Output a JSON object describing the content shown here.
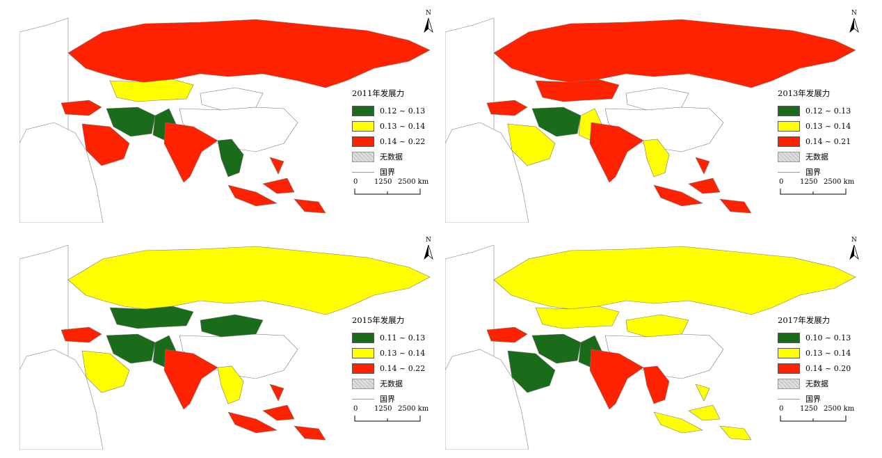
{
  "panels": [
    {
      "title": "2011年发展力",
      "legend": [
        {
          "label": "0.12 ~ 0.13",
          "color": "#1a6b1a"
        },
        {
          "label": "0.13 ~ 0.14",
          "color": "#ffff00"
        },
        {
          "label": "0.14 ~ 0.22",
          "color": "#ff2200"
        }
      ],
      "russia": "high",
      "kazakhstan": "mid",
      "china": "none",
      "mongolia": "none",
      "india": "high",
      "iran": "low",
      "pakistan": "low",
      "saudi": "high",
      "turkey": "high",
      "se_asia": "high",
      "indochina": "low"
    },
    {
      "title": "2013年发展力",
      "legend": [
        {
          "label": "0.12 ~ 0.13",
          "color": "#1a6b1a"
        },
        {
          "label": "0.13 ~ 0.14",
          "color": "#ffff00"
        },
        {
          "label": "0.14 ~ 0.21",
          "color": "#ff2200"
        }
      ],
      "russia": "high",
      "kazakhstan": "high",
      "china": "none",
      "mongolia": "none",
      "india": "high",
      "iran": "low",
      "pakistan": "mid",
      "saudi": "mid",
      "turkey": "high",
      "se_asia": "high",
      "indochina": "mid"
    },
    {
      "title": "2015年发展力",
      "legend": [
        {
          "label": "0.11 ~ 0.13",
          "color": "#1a6b1a"
        },
        {
          "label": "0.13 ~ 0.14",
          "color": "#ffff00"
        },
        {
          "label": "0.14 ~ 0.22",
          "color": "#ff2200"
        }
      ],
      "russia": "mid",
      "kazakhstan": "low",
      "china": "none",
      "mongolia": "low",
      "india": "high",
      "iran": "low",
      "pakistan": "low",
      "saudi": "mid",
      "turkey": "high",
      "se_asia": "high",
      "indochina": "mid"
    },
    {
      "title": "2017年发展力",
      "legend": [
        {
          "label": "0.10 ~ 0.13",
          "color": "#1a6b1a"
        },
        {
          "label": "0.13 ~ 0.14",
          "color": "#ffff00"
        },
        {
          "label": "0.14 ~ 0.20",
          "color": "#ff2200"
        }
      ],
      "russia": "mid",
      "kazakhstan": "mid",
      "china": "none",
      "mongolia": "mid",
      "india": "high",
      "iran": "low",
      "pakistan": "low",
      "saudi": "low",
      "turkey": "high",
      "se_asia": "mid",
      "indochina": "high"
    }
  ],
  "common": {
    "nodata_label": "无数据",
    "border_label": "国界",
    "scale": [
      "0",
      "1250",
      "2500 km"
    ],
    "north": "N",
    "nodata_color": "#cccccc"
  }
}
